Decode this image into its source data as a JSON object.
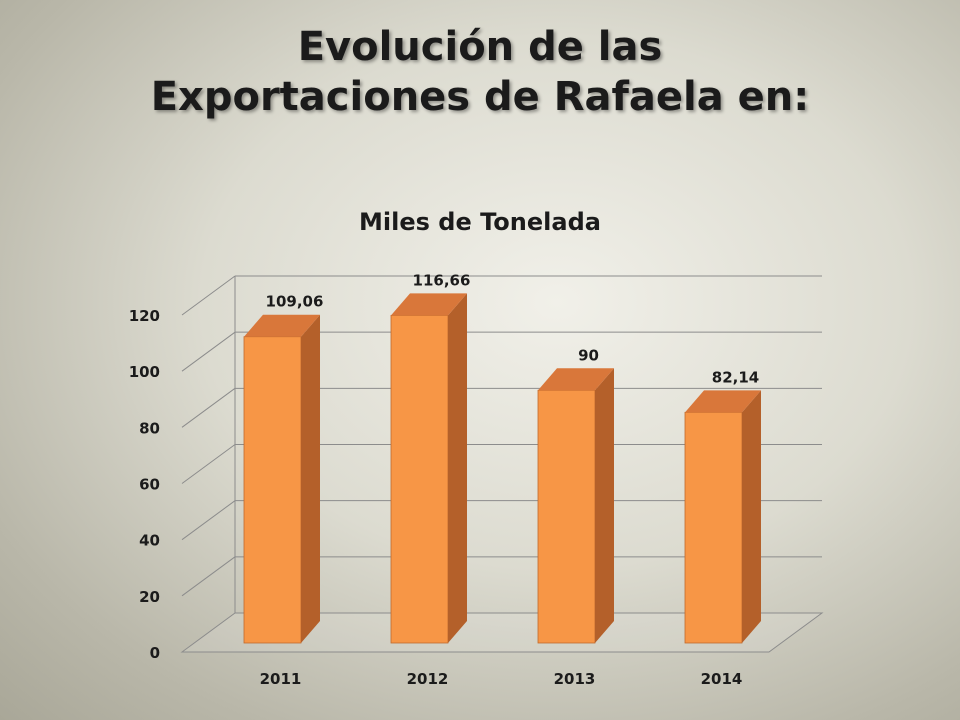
{
  "slide": {
    "title_line1": "Evolución de las",
    "title_line2": "Exportaciones de Rafaela en:"
  },
  "chart_data": {
    "type": "bar",
    "title": "Miles de Tonelada",
    "categories": [
      "2011",
      "2012",
      "2013",
      "2014"
    ],
    "values": [
      109.06,
      116.66,
      90,
      82.14
    ],
    "data_labels": [
      "109,06",
      "116,66",
      "90",
      "82,14"
    ],
    "ylim": [
      0,
      120
    ],
    "yticks": [
      0,
      20,
      40,
      60,
      80,
      100,
      120
    ],
    "grid": true,
    "legend": "none",
    "three_d": true,
    "colors": {
      "bar_front": "#f79646",
      "bar_side": "#b4602a",
      "bar_top": "#d9773a",
      "gridline": "#8c8c8c"
    }
  }
}
